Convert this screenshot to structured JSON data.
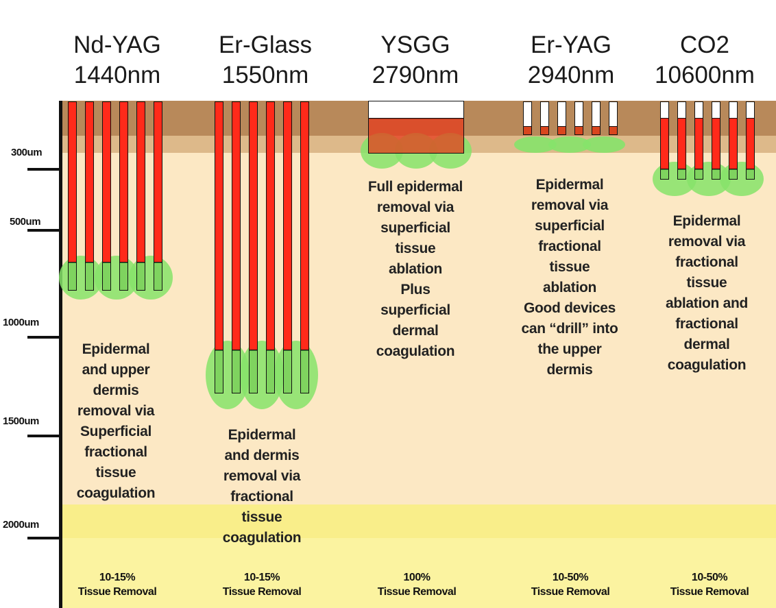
{
  "lasers": [
    {
      "name": "Nd-YAG",
      "wavelength": "1440nm",
      "description": [
        "Epidermal",
        "and upper",
        "dermis",
        "removal via",
        "Superficial",
        "fractional",
        "tissue",
        "coagulation"
      ],
      "removal_percent": "10-15%",
      "removal_label": "Tissue Removal"
    },
    {
      "name": "Er-Glass",
      "wavelength": "1550nm",
      "description": [
        "Epidermal",
        "and dermis",
        "removal via",
        "fractional",
        "tissue",
        "coagulation"
      ],
      "removal_percent": "10-15%",
      "removal_label": "Tissue Removal"
    },
    {
      "name": "YSGG",
      "wavelength": "2790nm",
      "description": [
        "Full epidermal",
        "removal via",
        "superficial",
        "tissue",
        "ablation",
        "Plus",
        "superficial",
        "dermal",
        "coagulation"
      ],
      "removal_percent": "100%",
      "removal_label": "Tissue Removal"
    },
    {
      "name": "Er-YAG",
      "wavelength": "2940nm",
      "description": [
        "Epidermal",
        "removal via",
        "superficial",
        "fractional",
        "tissue",
        "ablation",
        "Good devices",
        "can “drill” into",
        "the upper",
        "dermis"
      ],
      "removal_percent": "10-50%",
      "removal_label": "Tissue Removal"
    },
    {
      "name": "CO2",
      "wavelength": "10600nm",
      "description": [
        "Epidermal",
        "removal via",
        "fractional",
        "tissue",
        "ablation and",
        "fractional",
        "dermal",
        "coagulation"
      ],
      "removal_percent": "10-50%",
      "removal_label": "Tissue Removal"
    }
  ],
  "depth_markers": [
    "300um",
    "500um",
    "1000um",
    "1500um",
    "2000um"
  ],
  "colors": {
    "epidermis": "#b8895a",
    "upper_dermis": "#ddb98a",
    "dermis": "#fce8c4",
    "deep_dermis": "#f9ee8a",
    "subcutis": "#fbf3a0",
    "ablation_column": "#ff2a1a",
    "coagulation_zone": "#86e36a",
    "axis": "#111111"
  }
}
